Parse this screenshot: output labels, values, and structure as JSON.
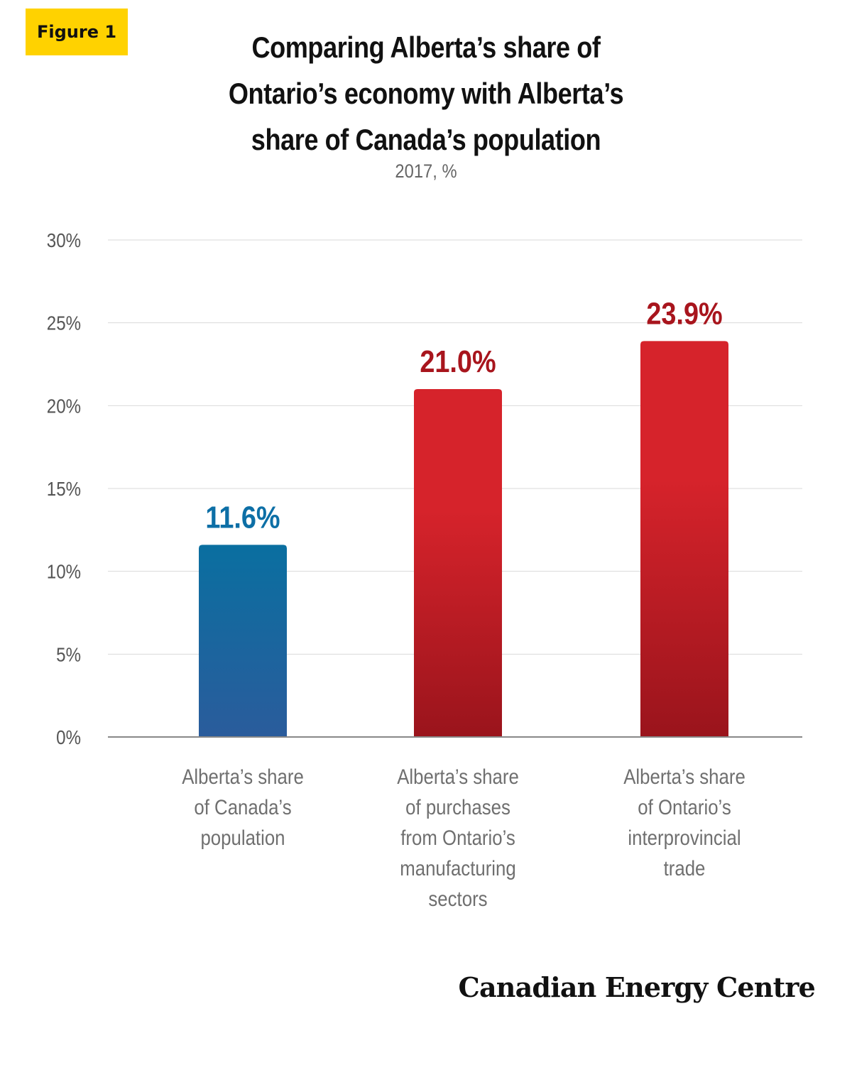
{
  "badge": "Figure 1",
  "logo": "Canadian Energy Centre",
  "colors": {
    "blue_top": "#0a6fa0",
    "blue_bottom": "#2a5c9c",
    "red_top": "#d6232b",
    "red_bottom": "#9a141c",
    "blue_label": "#0d6fa6",
    "red_label": "#a8151d",
    "grid": "#d9d9d9",
    "axis": "#888888"
  },
  "chart_data": {
    "type": "bar",
    "title_lines": [
      "Comparing Alberta’s share of",
      "Ontario’s economy with Alberta’s",
      "share of Canada’s population"
    ],
    "subtitle": "2017, %",
    "categories": [
      [
        "Alberta’s share",
        "of Canada’s",
        "population"
      ],
      [
        "Alberta’s share",
        "of purchases",
        "from Ontario’s",
        "manufacturing",
        "sectors"
      ],
      [
        "Alberta’s share",
        "of Ontario’s",
        "interprovincial",
        "trade"
      ]
    ],
    "values": [
      11.6,
      21.0,
      23.9
    ],
    "value_labels": [
      "11.6%",
      "21.0%",
      "23.9%"
    ],
    "bar_colors": [
      "blue",
      "red",
      "red"
    ],
    "ylim": [
      0,
      30
    ],
    "yticks": [
      0,
      5,
      10,
      15,
      20,
      25,
      30
    ],
    "ytick_labels": [
      "0%",
      "5%",
      "10%",
      "15%",
      "20%",
      "25%",
      "30%"
    ],
    "grid": true,
    "legend": false
  }
}
